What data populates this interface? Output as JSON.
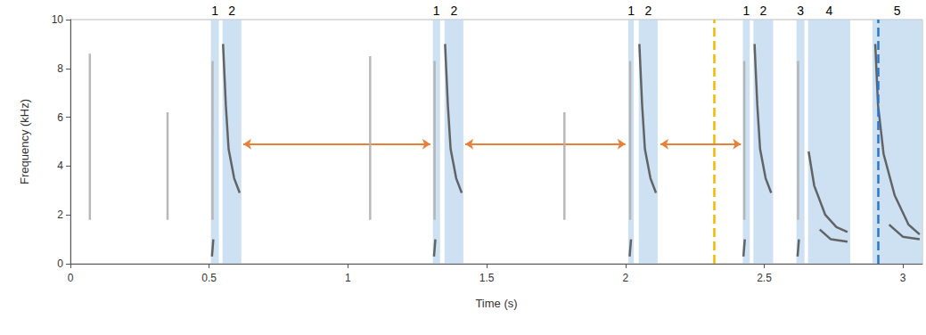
{
  "chart_data": {
    "type": "spectrogram",
    "xlabel": "Time (s)",
    "ylabel": "Frequency (kHz)",
    "xlim": [
      0,
      3.07
    ],
    "xticks": [
      0,
      0.5,
      1,
      1.5,
      2,
      2.5,
      3
    ],
    "ylim": [
      0,
      10
    ],
    "yticks": [
      0,
      2,
      4,
      6,
      8,
      10
    ],
    "grid": false,
    "regions": [
      {
        "start": 0.506,
        "end": 0.535,
        "label": "1"
      },
      {
        "start": 0.548,
        "end": 0.616,
        "label": "2"
      },
      {
        "start": 1.306,
        "end": 1.332,
        "label": "1"
      },
      {
        "start": 1.348,
        "end": 1.416,
        "label": "2"
      },
      {
        "start": 2.01,
        "end": 2.03,
        "label": "1"
      },
      {
        "start": 2.048,
        "end": 2.116,
        "label": "2"
      },
      {
        "start": 2.423,
        "end": 2.448,
        "label": "1"
      },
      {
        "start": 2.461,
        "end": 2.532,
        "label": "2"
      },
      {
        "start": 2.616,
        "end": 2.645,
        "label": "3"
      },
      {
        "start": 2.658,
        "end": 2.81,
        "label": "4"
      },
      {
        "start": 2.89,
        "end": 3.068,
        "label": "5"
      }
    ],
    "region_color": "#bdd7ee",
    "arrows": [
      {
        "start": 0.623,
        "end": 1.297,
        "y": 4.9
      },
      {
        "start": 1.423,
        "end": 2.0,
        "y": 4.9
      },
      {
        "start": 2.126,
        "end": 2.416,
        "y": 4.9
      }
    ],
    "arrow_color": "#e8803a",
    "markers": [
      {
        "x": 2.316,
        "color": "#f5b800",
        "line_style": "dashed"
      },
      {
        "x": 2.906,
        "color": "#2e75c9",
        "line_style": "dashed"
      }
    ],
    "traces": [
      {
        "t": [
          0.07,
          0.07
        ],
        "f": [
          1.8,
          8.6
        ],
        "color": "#b0b0b0"
      },
      {
        "t": [
          0.35,
          0.35
        ],
        "f": [
          1.8,
          6.2
        ],
        "color": "#b0b0b0"
      },
      {
        "t": [
          1.08,
          1.08
        ],
        "f": [
          1.8,
          8.5
        ],
        "color": "#b0b0b0"
      },
      {
        "t": [
          1.78,
          1.78
        ],
        "f": [
          1.8,
          6.2
        ],
        "color": "#b0b0b0"
      },
      {
        "t": [
          0.512,
          0.512
        ],
        "f": [
          1.8,
          8.3
        ],
        "color": "#b0b0b0"
      },
      {
        "t": [
          1.312,
          1.312
        ],
        "f": [
          1.8,
          8.3
        ],
        "color": "#b0b0b0"
      },
      {
        "t": [
          2.017,
          2.017
        ],
        "f": [
          1.8,
          8.3
        ],
        "color": "#b0b0b0"
      },
      {
        "t": [
          2.428,
          2.428
        ],
        "f": [
          1.8,
          8.3
        ],
        "color": "#b0b0b0"
      },
      {
        "t": [
          2.622,
          2.622
        ],
        "f": [
          1.8,
          8.3
        ],
        "color": "#b0b0b0"
      },
      {
        "t": [
          0.51,
          0.515
        ],
        "f": [
          0.3,
          1.0
        ],
        "color": "#555555"
      },
      {
        "t": [
          1.31,
          1.315
        ],
        "f": [
          0.3,
          1.0
        ],
        "color": "#555555"
      },
      {
        "t": [
          2.015,
          2.02
        ],
        "f": [
          0.3,
          1.0
        ],
        "color": "#555555"
      },
      {
        "t": [
          2.425,
          2.43
        ],
        "f": [
          0.3,
          1.0
        ],
        "color": "#555555"
      },
      {
        "t": [
          2.62,
          2.625
        ],
        "f": [
          0.3,
          1.0
        ],
        "color": "#555555"
      },
      {
        "t": [
          0.55,
          0.56,
          0.57,
          0.59,
          0.61
        ],
        "f": [
          9,
          6.5,
          4.7,
          3.5,
          2.9
        ],
        "color": "#555555"
      },
      {
        "t": [
          1.35,
          1.36,
          1.37,
          1.39,
          1.41
        ],
        "f": [
          9,
          6.5,
          4.7,
          3.5,
          2.9
        ],
        "color": "#555555"
      },
      {
        "t": [
          2.05,
          2.06,
          2.07,
          2.09,
          2.11
        ],
        "f": [
          9,
          6.5,
          4.7,
          3.5,
          2.9
        ],
        "color": "#555555"
      },
      {
        "t": [
          2.465,
          2.475,
          2.485,
          2.505,
          2.525
        ],
        "f": [
          9,
          6.5,
          4.7,
          3.5,
          2.9
        ],
        "color": "#555555"
      },
      {
        "t": [
          2.66,
          2.68,
          2.72,
          2.76,
          2.8
        ],
        "f": [
          4.6,
          3.2,
          2.0,
          1.5,
          1.3
        ],
        "color": "#555555"
      },
      {
        "t": [
          2.7,
          2.74,
          2.8
        ],
        "f": [
          1.4,
          1.0,
          0.9
        ],
        "color": "#555555"
      },
      {
        "t": [
          2.9,
          2.91,
          2.93,
          2.97,
          3.02,
          3.06
        ],
        "f": [
          9,
          6.5,
          4.5,
          2.8,
          1.6,
          1.2
        ],
        "color": "#555555"
      },
      {
        "t": [
          2.95,
          3.0,
          3.06
        ],
        "f": [
          1.6,
          1.1,
          1.0
        ],
        "color": "#555555"
      }
    ]
  }
}
